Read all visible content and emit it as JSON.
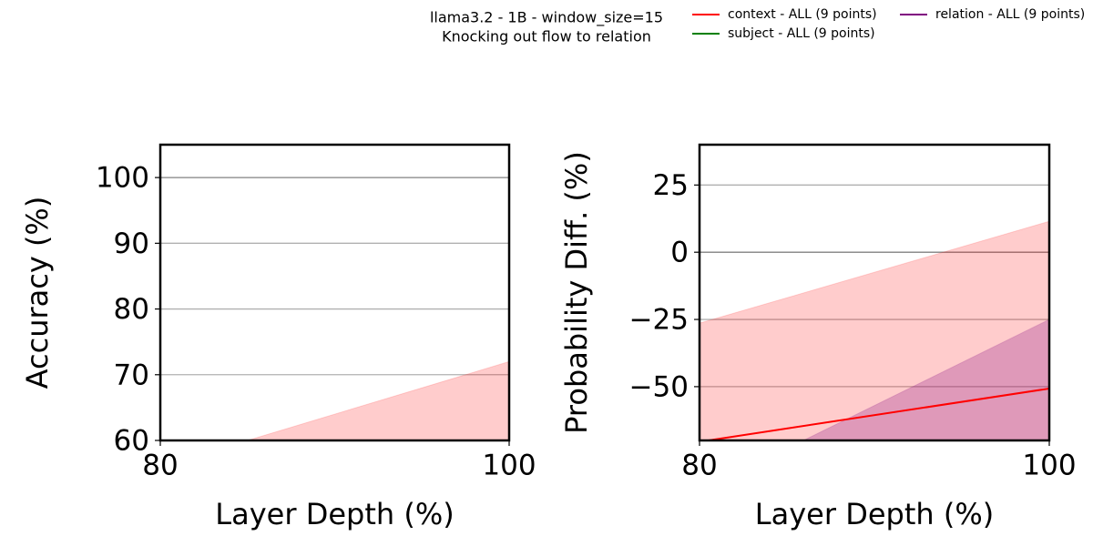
{
  "figure": {
    "title_lines": [
      "llama3.2 - 1B - window_size=15",
      "Knocking out flow to relation"
    ]
  },
  "chart_data": [
    {
      "type": "line",
      "xlabel": "Layer Depth (%)",
      "ylabel": "Accuracy (%)",
      "x": [
        80,
        100
      ],
      "xlim": [
        80,
        100
      ],
      "xticks": [
        80,
        100
      ],
      "ylim": [
        60,
        105
      ],
      "yticks": [
        60,
        70,
        80,
        90,
        100
      ],
      "grid": true,
      "reference_line": 100,
      "series": [
        {
          "name": "context - ALL (9 points)",
          "color": "#ff0000",
          "values": [
            null,
            null
          ],
          "band_upper": [
            56,
            72
          ]
        },
        {
          "name": "subject - ALL (9 points)",
          "color": "#008000",
          "values": [
            null,
            null
          ],
          "band_upper": [
            null,
            null
          ]
        },
        {
          "name": "relation - ALL (9 points)",
          "color": "#800080",
          "values": [
            null,
            null
          ],
          "band_upper": [
            null,
            null
          ]
        }
      ]
    },
    {
      "type": "line",
      "xlabel": "Layer Depth (%)",
      "ylabel": "Probability Diff. (%)",
      "x": [
        80,
        100
      ],
      "xlim": [
        80,
        100
      ],
      "xticks": [
        80,
        100
      ],
      "ylim": [
        -70,
        40
      ],
      "yticks": [
        {
          "value": -50,
          "label": "−50"
        },
        {
          "value": -25,
          "label": "−25"
        },
        0,
        25
      ],
      "grid": true,
      "reference_line": 0,
      "series": [
        {
          "name": "context - ALL (9 points)",
          "color": "#ff0000",
          "values": [
            -70.5,
            -50.7
          ],
          "band_upper": [
            -26.4,
            11.5
          ]
        },
        {
          "name": "subject - ALL (9 points)",
          "color": "#008000",
          "values": [
            null,
            null
          ],
          "band_upper": [
            null,
            null
          ]
        },
        {
          "name": "relation - ALL (9 points)",
          "color": "#800080",
          "values": [
            null,
            null
          ],
          "band_upper": [
            -89,
            -25
          ]
        }
      ]
    }
  ]
}
